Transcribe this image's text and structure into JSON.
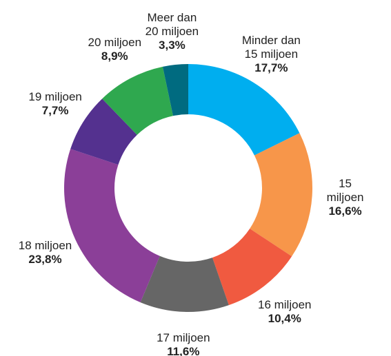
{
  "chart_data": {
    "type": "donut",
    "categories": [
      "Minder dan\n15 miljoen",
      "15 miljoen",
      "16 miljoen",
      "17 miljoen",
      "18 miljoen",
      "19 miljoen",
      "20 miljoen",
      "Meer dan\n20 miljoen"
    ],
    "values": [
      17.7,
      16.6,
      10.4,
      11.6,
      23.8,
      7.7,
      8.9,
      3.3
    ],
    "value_labels": [
      "17,7%",
      "16,6%",
      "10,4%",
      "11,6%",
      "23,8%",
      "7,7%",
      "8,9%",
      "3,3%"
    ],
    "colors": [
      "#00aeef",
      "#f7964a",
      "#f05a40",
      "#666666",
      "#8b3f98",
      "#54318f",
      "#2fa84f",
      "#006b80"
    ]
  }
}
